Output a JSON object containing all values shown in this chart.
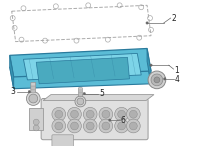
{
  "bg_color": "#ffffff",
  "fig_width": 2.0,
  "fig_height": 1.47,
  "dpi": 100,
  "pan_color": "#5bbcd6",
  "pan_edge_color": "#2a7a9c",
  "pan_inner_color": "#7dd4e8",
  "pan_shadow_color": "#3a9ab8",
  "gasket_color": "none",
  "gasket_edge": "#aaaaaa",
  "part_edge": "#888888",
  "part_fill": "#d8d8d8",
  "vb_fill": "#e0e0e0",
  "vb_edge": "#999999",
  "label_color": "#222222",
  "line_color": "#666666",
  "lw": 0.5,
  "label_fs": 5.5
}
